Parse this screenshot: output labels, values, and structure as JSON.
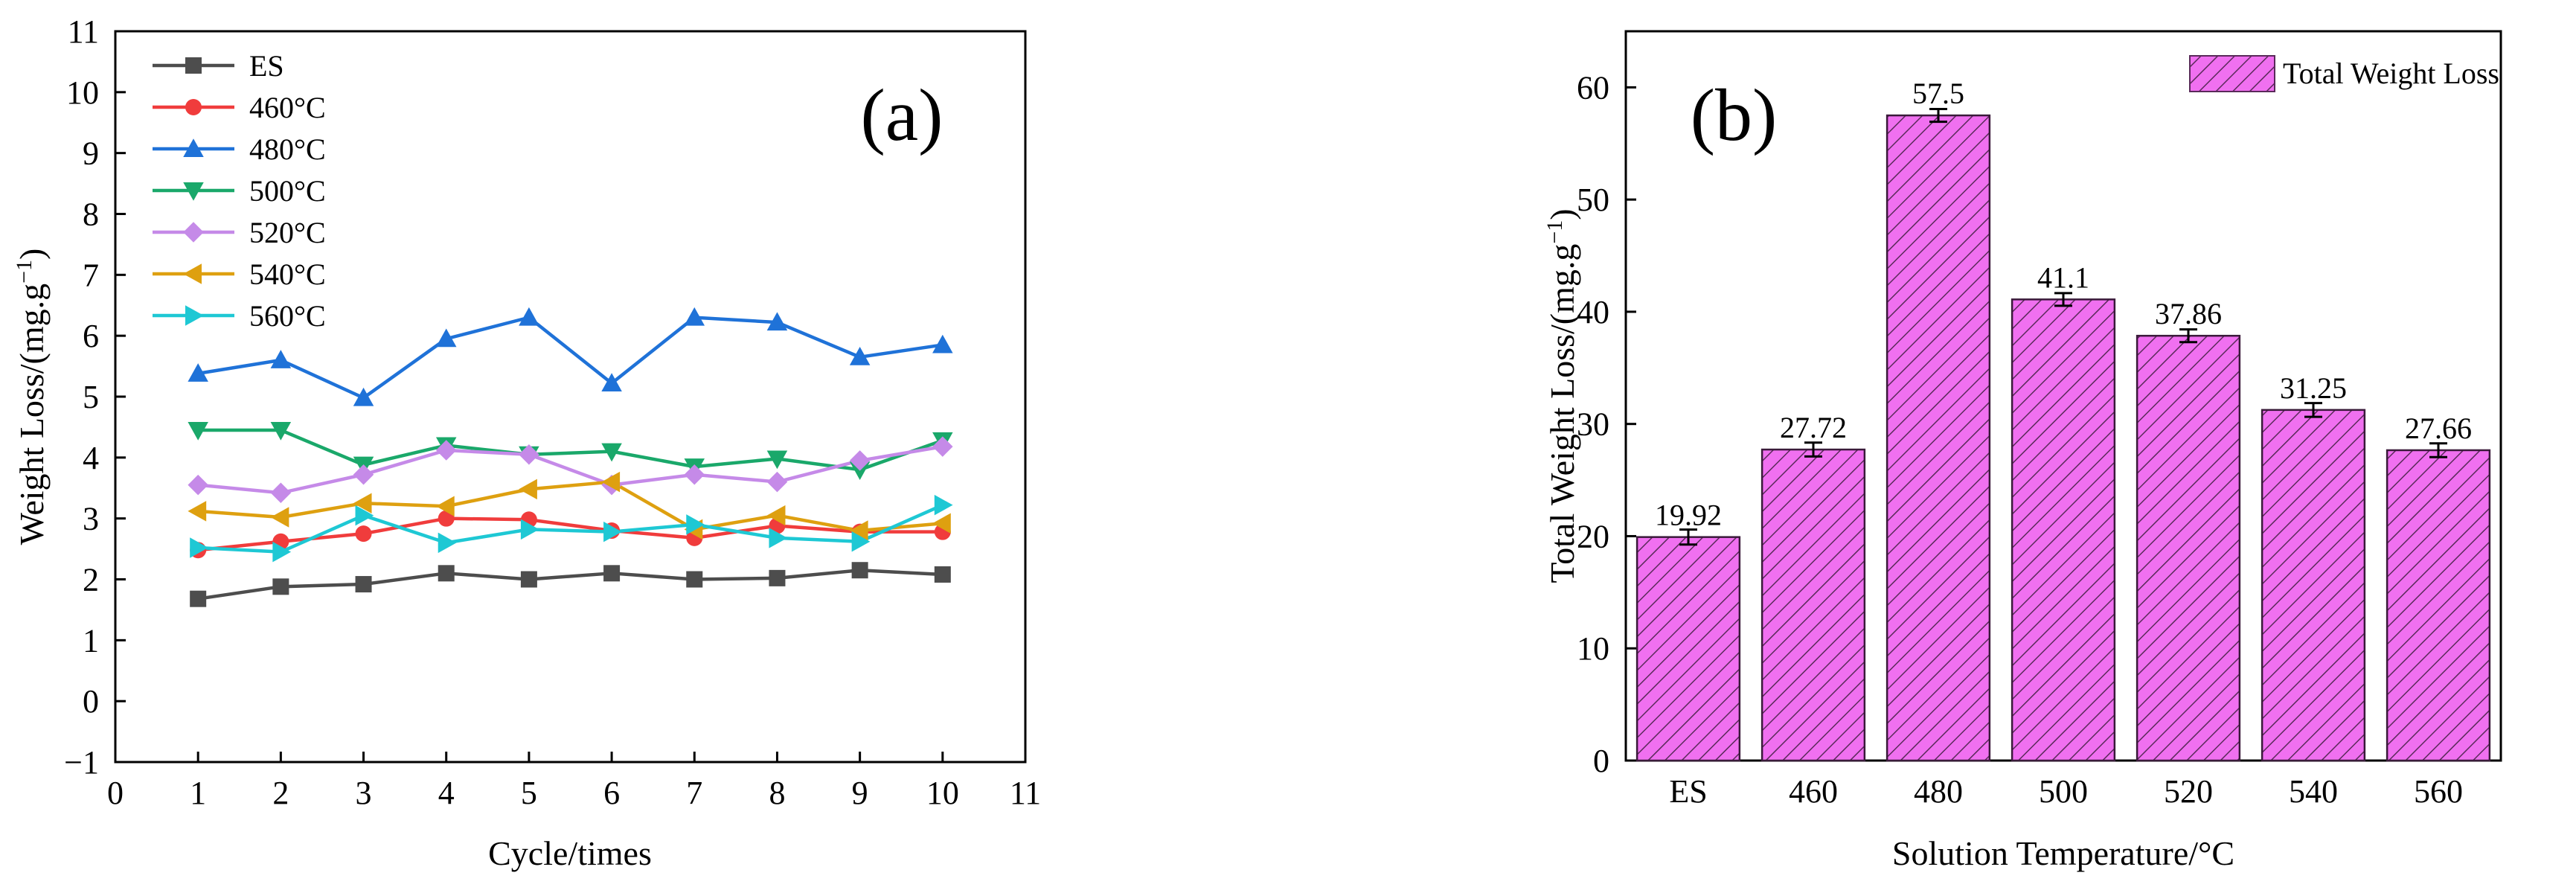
{
  "chart_data": [
    {
      "type": "line",
      "panel_label": "(a)",
      "xlabel": "Cycle/times",
      "ylabel": "Weight Loss/(mg.g",
      "ylabel_sup": "−1",
      "ylabel_close": ")",
      "xlim": [
        0,
        11
      ],
      "ylim": [
        -1,
        11
      ],
      "xticks": [
        0,
        1,
        2,
        3,
        4,
        5,
        6,
        7,
        8,
        9,
        10,
        11
      ],
      "yticks": [
        -1,
        0,
        1,
        2,
        3,
        4,
        5,
        6,
        7,
        8,
        9,
        10,
        11
      ],
      "legend_position": "top-left",
      "x": [
        1,
        2,
        3,
        4,
        5,
        6,
        7,
        8,
        9,
        10
      ],
      "series": [
        {
          "name": "ES",
          "color": "#4d4d4d",
          "marker": "square",
          "values": [
            1.68,
            1.88,
            1.92,
            2.1,
            2.0,
            2.1,
            2.0,
            2.02,
            2.15,
            2.08
          ]
        },
        {
          "name": "460°C",
          "color": "#f03c3c",
          "marker": "circle",
          "values": [
            2.48,
            2.62,
            2.75,
            3.0,
            2.98,
            2.8,
            2.68,
            2.88,
            2.78,
            2.78
          ]
        },
        {
          "name": "480°C",
          "color": "#1f72d8",
          "marker": "triangle-up",
          "values": [
            5.38,
            5.6,
            4.98,
            5.95,
            6.3,
            5.22,
            6.3,
            6.22,
            5.65,
            5.85
          ]
        },
        {
          "name": "500°C",
          "color": "#1aa86a",
          "marker": "triangle-down",
          "values": [
            4.45,
            4.45,
            3.88,
            4.2,
            4.05,
            4.1,
            3.85,
            3.98,
            3.8,
            4.28
          ]
        },
        {
          "name": "520°C",
          "color": "#c58ae8",
          "marker": "diamond",
          "values": [
            3.55,
            3.42,
            3.72,
            4.12,
            4.05,
            3.55,
            3.72,
            3.6,
            3.95,
            4.18
          ]
        },
        {
          "name": "540°C",
          "color": "#dea010",
          "marker": "triangle-left",
          "values": [
            3.12,
            3.02,
            3.25,
            3.2,
            3.48,
            3.6,
            2.82,
            3.05,
            2.8,
            2.92
          ]
        },
        {
          "name": "560°C",
          "color": "#1ec8d4",
          "marker": "triangle-right",
          "values": [
            2.52,
            2.45,
            3.05,
            2.6,
            2.82,
            2.78,
            2.9,
            2.68,
            2.62,
            3.22
          ]
        }
      ]
    },
    {
      "type": "bar",
      "panel_label": "(b)",
      "xlabel": "Solution Temperature/°C",
      "ylabel": "Total Weight Loss/(mg.g",
      "ylabel_sup": "−1",
      "ylabel_close": ")",
      "ylim": [
        0,
        65
      ],
      "yticks": [
        0,
        10,
        20,
        30,
        40,
        50,
        60
      ],
      "categories": [
        "ES",
        "460",
        "480",
        "500",
        "520",
        "540",
        "560"
      ],
      "series": [
        {
          "name": "Total Weight Loss",
          "color": "#f070f0",
          "hatch_color": "#5a2a5a",
          "values": [
            19.92,
            27.72,
            57.5,
            41.1,
            37.86,
            31.25,
            27.66
          ],
          "value_labels": [
            "19.92",
            "27.72",
            "57.5",
            "41.1",
            "37.86",
            "31.25",
            "27.66"
          ],
          "error": [
            0.4,
            0.35,
            0.3,
            0.3,
            0.3,
            0.35,
            0.35
          ]
        }
      ],
      "legend_position": "top-right"
    }
  ]
}
